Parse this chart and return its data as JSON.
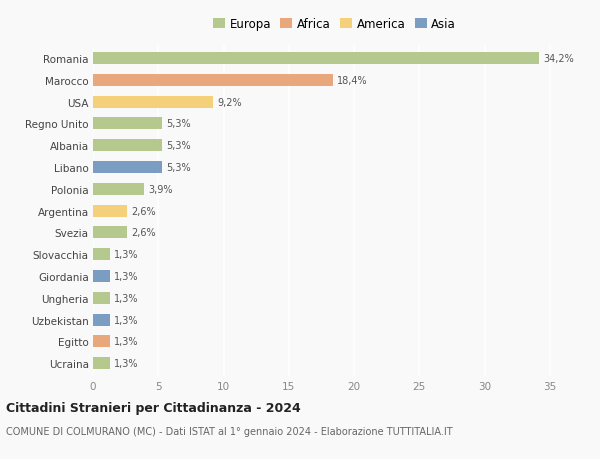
{
  "countries": [
    "Romania",
    "Marocco",
    "USA",
    "Regno Unito",
    "Albania",
    "Libano",
    "Polonia",
    "Argentina",
    "Svezia",
    "Slovacchia",
    "Giordania",
    "Ungheria",
    "Uzbekistan",
    "Egitto",
    "Ucraina"
  ],
  "values": [
    34.2,
    18.4,
    9.2,
    5.3,
    5.3,
    5.3,
    3.9,
    2.6,
    2.6,
    1.3,
    1.3,
    1.3,
    1.3,
    1.3,
    1.3
  ],
  "labels": [
    "34,2%",
    "18,4%",
    "9,2%",
    "5,3%",
    "5,3%",
    "5,3%",
    "3,9%",
    "2,6%",
    "2,6%",
    "1,3%",
    "1,3%",
    "1,3%",
    "1,3%",
    "1,3%",
    "1,3%"
  ],
  "colors": [
    "#b5c98e",
    "#e8a87c",
    "#f5d07a",
    "#b5c98e",
    "#b5c98e",
    "#7b9dc2",
    "#b5c98e",
    "#f5d07a",
    "#b5c98e",
    "#b5c98e",
    "#7b9dc2",
    "#b5c98e",
    "#7b9dc2",
    "#e8a87c",
    "#b5c98e"
  ],
  "legend_labels": [
    "Europa",
    "Africa",
    "America",
    "Asia"
  ],
  "legend_colors": [
    "#b5c98e",
    "#e8a87c",
    "#f5d07a",
    "#7b9dc2"
  ],
  "title": "Cittadini Stranieri per Cittadinanza - 2024",
  "subtitle": "COMUNE DI COLMURANO (MC) - Dati ISTAT al 1° gennaio 2024 - Elaborazione TUTTITALIA.IT",
  "xlim": [
    0,
    37
  ],
  "xticks": [
    0,
    5,
    10,
    15,
    20,
    25,
    30,
    35
  ],
  "background_color": "#f9f9f9",
  "grid_color": "#ffffff",
  "bar_height": 0.55
}
